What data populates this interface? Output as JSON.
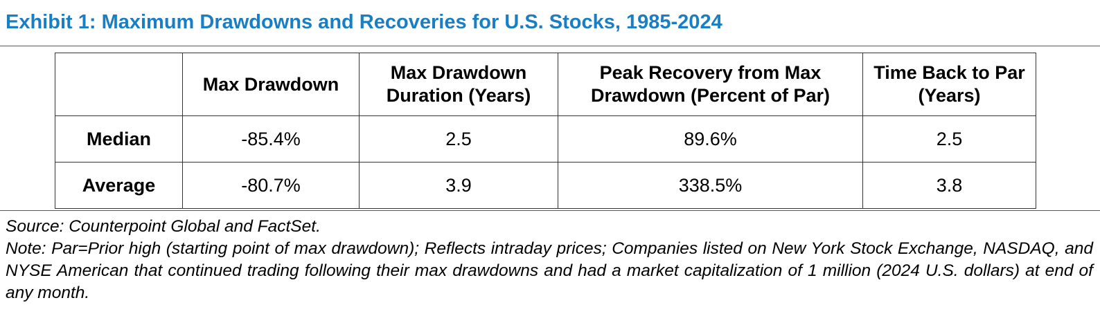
{
  "exhibit": {
    "title": "Exhibit 1: Maximum Drawdowns and Recoveries for U.S. Stocks, 1985-2024",
    "title_color": "#1a7ec2"
  },
  "table": {
    "columns": [
      "",
      "Max Drawdown",
      "Max Drawdown Duration (Years)",
      "Peak Recovery from Max Drawdown (Percent of Par)",
      "Time Back to Par (Years)"
    ],
    "rows": [
      {
        "label": "Median",
        "values": [
          "-85.4%",
          "2.5",
          "89.6%",
          "2.5"
        ]
      },
      {
        "label": "Average",
        "values": [
          "-80.7%",
          "3.9",
          "338.5%",
          "3.8"
        ]
      }
    ]
  },
  "footer": {
    "source": "Source: Counterpoint Global and FactSet.",
    "note": "Note: Par=Prior high (starting point of max drawdown); Reflects intraday prices; Companies listed on New York Stock Exchange, NASDAQ, and NYSE American that continued trading following their max drawdowns and had a market capitalization of 1 million (2024 U.S. dollars) at end of any month."
  }
}
